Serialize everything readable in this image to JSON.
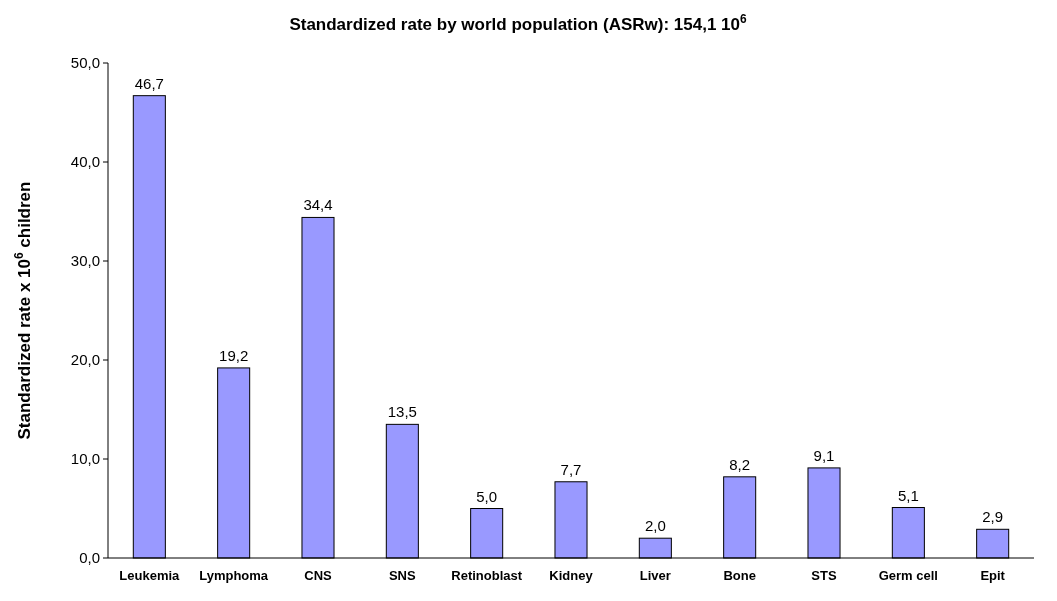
{
  "chart_data": {
    "type": "bar",
    "title": "Standardized rate by world population (ASRw): 154,1 10$^{6}$",
    "ylabel": "Standardized rate x 10$^{6}$ children",
    "categories": [
      "Leukemia",
      "Lymphoma",
      "CNS",
      "SNS",
      "Retinoblast",
      "Kidney",
      "Liver",
      "Bone",
      "STS",
      "Germ cell",
      "Epit"
    ],
    "values": [
      46.7,
      19.2,
      34.4,
      13.5,
      5.0,
      7.7,
      2.0,
      8.2,
      9.1,
      5.1,
      2.9
    ],
    "value_labels": [
      "46,7",
      "19,2",
      "34,4",
      "13,5",
      "5,0",
      "7,7",
      "2,0",
      "8,2",
      "9,1",
      "5,1",
      "2,9"
    ],
    "color": "#9999ff",
    "ylim": [
      0,
      50
    ],
    "yticks": [
      {
        "value": 0,
        "label": "0,0"
      },
      {
        "value": 10,
        "label": "10,0"
      },
      {
        "value": 20,
        "label": "20,0"
      },
      {
        "value": 30,
        "label": "30,0"
      },
      {
        "value": 40,
        "label": "40,0"
      },
      {
        "value": 50,
        "label": "50,0"
      }
    ],
    "grid": false
  }
}
